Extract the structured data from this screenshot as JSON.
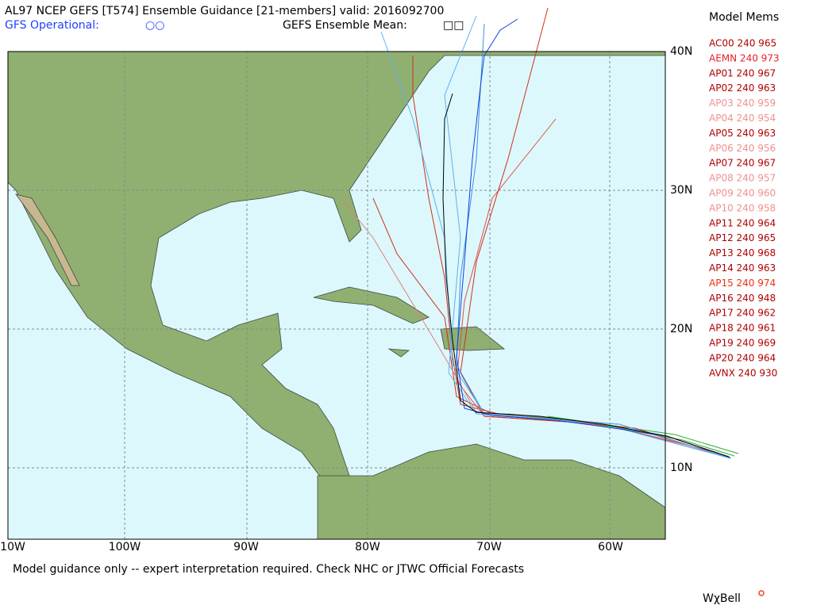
{
  "header": {
    "title": "AL97 NCEP GEFS [T574] Ensemble Guidance [21-members] valid: 2016092700",
    "operational": "GFS Operational:",
    "mean": "GEFS Ensemble Mean:"
  },
  "map": {
    "lon_labels": [
      "10W",
      "100W",
      "90W",
      "80W",
      "70W",
      "60W"
    ],
    "lat_labels": [
      "40N",
      "30N",
      "20N",
      "10N"
    ]
  },
  "legend": {
    "title": "Model Mems",
    "members": [
      {
        "label": "AC00 240 965",
        "color": "#b00000"
      },
      {
        "label": "AEMN 240 973",
        "color": "#e8202a"
      },
      {
        "label": "AP01 240 967",
        "color": "#b00000"
      },
      {
        "label": "AP02 240 963",
        "color": "#b00000"
      },
      {
        "label": "AP03 240 959",
        "color": "#f09090"
      },
      {
        "label": "AP04 240 954",
        "color": "#f09090"
      },
      {
        "label": "AP05 240 963",
        "color": "#b00000"
      },
      {
        "label": "AP06 240 956",
        "color": "#f09090"
      },
      {
        "label": "AP07 240 967",
        "color": "#b00000"
      },
      {
        "label": "AP08 240 957",
        "color": "#f09090"
      },
      {
        "label": "AP09 240 960",
        "color": "#f09090"
      },
      {
        "label": "AP10 240 958",
        "color": "#f09090"
      },
      {
        "label": "AP11 240 964",
        "color": "#b00000"
      },
      {
        "label": "AP12 240 965",
        "color": "#b00000"
      },
      {
        "label": "AP13 240 968",
        "color": "#b00000"
      },
      {
        "label": "AP14 240 963",
        "color": "#b00000"
      },
      {
        "label": "AP15 240 974",
        "color": "#f03010"
      },
      {
        "label": "AP16 240 948",
        "color": "#b00000"
      },
      {
        "label": "AP17 240 962",
        "color": "#b00000"
      },
      {
        "label": "AP18 240 961",
        "color": "#b00000"
      },
      {
        "label": "AP19 240 969",
        "color": "#b00000"
      },
      {
        "label": "AP20 240 964",
        "color": "#b00000"
      },
      {
        "label": "AVNX 240 930",
        "color": "#b00000"
      }
    ]
  },
  "footer": "Model guidance only -- expert interpretation required.  Check NHC or JTWC Official Forecasts",
  "logo": "WχBell"
}
